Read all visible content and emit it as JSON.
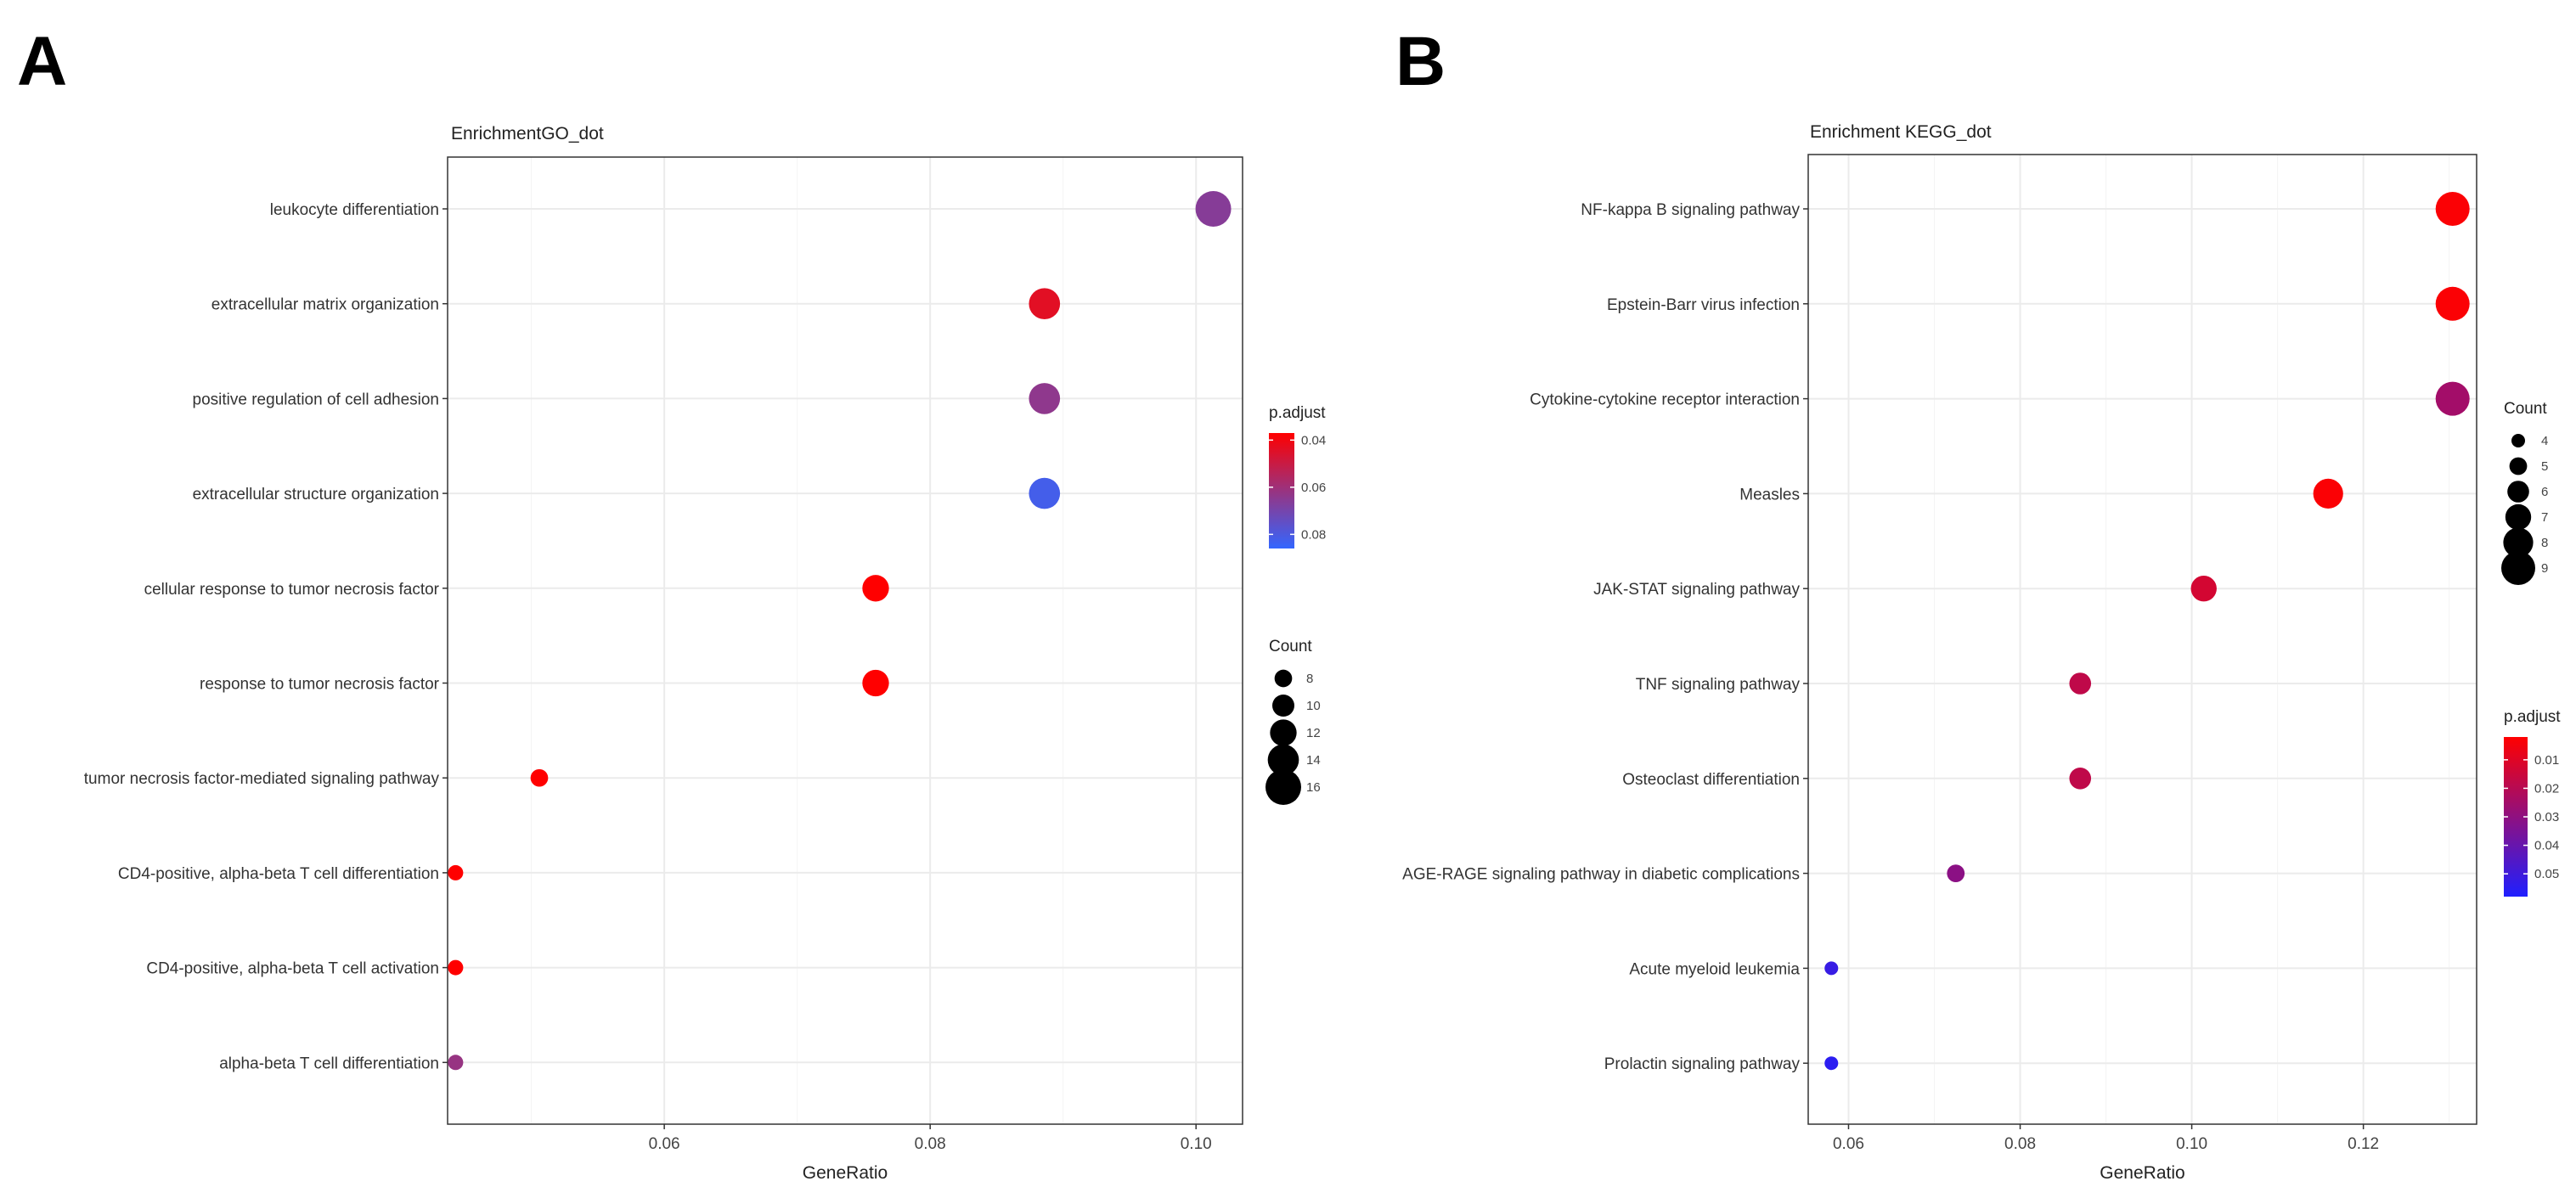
{
  "figure": {
    "panel_a_letter": "A",
    "panel_b_letter": "B"
  },
  "chart_data": [
    {
      "type": "scatter",
      "title": "EnrichmentGO_dot",
      "xlabel": "GeneRatio",
      "ylabel": "",
      "xlim": [
        0.0437,
        0.1035
      ],
      "x_ticks": [
        0.06,
        0.08,
        0.1
      ],
      "x_tick_labels": [
        "0.06",
        "0.08",
        "0.10"
      ],
      "grid": true,
      "terms": [
        {
          "label": "leukocyte differentiation",
          "gene_ratio": 0.1013,
          "count": 16,
          "p_adjust": 0.066
        },
        {
          "label": "extracellular matrix organization",
          "gene_ratio": 0.0886,
          "count": 14,
          "p_adjust": 0.044
        },
        {
          "label": "positive regulation of cell adhesion",
          "gene_ratio": 0.0886,
          "count": 14,
          "p_adjust": 0.064
        },
        {
          "label": "extracellular structure organization",
          "gene_ratio": 0.0886,
          "count": 14,
          "p_adjust": 0.082
        },
        {
          "label": "cellular response to tumor necrosis factor",
          "gene_ratio": 0.0759,
          "count": 12,
          "p_adjust": 0.037
        },
        {
          "label": "response to tumor necrosis factor",
          "gene_ratio": 0.0759,
          "count": 12,
          "p_adjust": 0.037
        },
        {
          "label": "tumor necrosis factor-mediated signaling pathway",
          "gene_ratio": 0.0506,
          "count": 8,
          "p_adjust": 0.037
        },
        {
          "label": "CD4-positive, alpha-beta T cell differentiation",
          "gene_ratio": 0.0443,
          "count": 7,
          "p_adjust": 0.037
        },
        {
          "label": "CD4-positive, alpha-beta T cell activation",
          "gene_ratio": 0.0443,
          "count": 7,
          "p_adjust": 0.037
        },
        {
          "label": "alpha-beta T cell differentiation",
          "gene_ratio": 0.0443,
          "count": 7,
          "p_adjust": 0.062
        }
      ],
      "legend": {
        "color": {
          "title": "p.adjust",
          "domain": [
            0.037,
            0.086
          ],
          "ticks": [
            0.04,
            0.06,
            0.08
          ],
          "tick_labels": [
            "0.04",
            "0.06",
            "0.08"
          ],
          "low_color": "#ff0000",
          "high_color": "#3366ff",
          "reversed": false
        },
        "size": {
          "title": "Count",
          "values": [
            8,
            10,
            12,
            14,
            16
          ],
          "labels": [
            "8",
            "10",
            "12",
            "14",
            "16"
          ],
          "range": [
            7,
            16
          ]
        },
        "order": [
          "color",
          "size"
        ]
      }
    },
    {
      "type": "scatter",
      "title": "Enrichment KEGG_dot",
      "xlabel": "GeneRatio",
      "ylabel": "",
      "xlim": [
        0.0553,
        0.1332
      ],
      "x_ticks": [
        0.06,
        0.08,
        0.1,
        0.12
      ],
      "x_tick_labels": [
        "0.06",
        "0.08",
        "0.10",
        "0.12"
      ],
      "grid": true,
      "terms": [
        {
          "label": "NF-kappa B signaling pathway",
          "gene_ratio": 0.1304,
          "count": 9,
          "p_adjust": 0.003
        },
        {
          "label": "Epstein-Barr virus infection",
          "gene_ratio": 0.1304,
          "count": 9,
          "p_adjust": 0.003
        },
        {
          "label": "Cytokine-cytokine receptor interaction",
          "gene_ratio": 0.1304,
          "count": 9,
          "p_adjust": 0.025
        },
        {
          "label": "Measles",
          "gene_ratio": 0.1159,
          "count": 8,
          "p_adjust": 0.003
        },
        {
          "label": "JAK-STAT signaling pathway",
          "gene_ratio": 0.1014,
          "count": 7,
          "p_adjust": 0.013
        },
        {
          "label": "TNF signaling pathway",
          "gene_ratio": 0.087,
          "count": 6,
          "p_adjust": 0.018
        },
        {
          "label": "Osteoclast differentiation",
          "gene_ratio": 0.087,
          "count": 6,
          "p_adjust": 0.018
        },
        {
          "label": "AGE-RAGE signaling pathway in diabetic complications",
          "gene_ratio": 0.0725,
          "count": 5,
          "p_adjust": 0.031
        },
        {
          "label": "Acute myeloid leukemia",
          "gene_ratio": 0.058,
          "count": 4,
          "p_adjust": 0.052
        },
        {
          "label": "Prolactin signaling pathway",
          "gene_ratio": 0.058,
          "count": 4,
          "p_adjust": 0.055
        }
      ],
      "legend": {
        "color": {
          "title": "p.adjust",
          "domain": [
            0.002,
            0.058
          ],
          "ticks": [
            0.01,
            0.02,
            0.03,
            0.04,
            0.05
          ],
          "tick_labels": [
            "0.01",
            "0.02",
            "0.03",
            "0.04",
            "0.05"
          ],
          "low_color": "#ff0000",
          "high_color": "#1f1fff",
          "reversed": false
        },
        "size": {
          "title": "Count",
          "values": [
            4,
            5,
            6,
            7,
            8,
            9
          ],
          "labels": [
            "4",
            "5",
            "6",
            "7",
            "8",
            "9"
          ],
          "range": [
            4,
            9
          ]
        },
        "order": [
          "size",
          "color"
        ]
      }
    }
  ]
}
